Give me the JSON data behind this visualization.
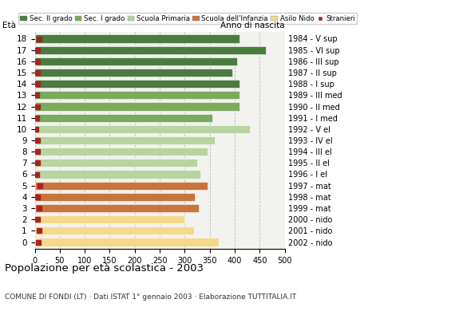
{
  "ages": [
    18,
    17,
    16,
    15,
    14,
    13,
    12,
    11,
    10,
    9,
    8,
    7,
    6,
    5,
    4,
    3,
    2,
    1,
    0
  ],
  "values": [
    410,
    462,
    405,
    395,
    410,
    410,
    410,
    355,
    430,
    360,
    345,
    325,
    332,
    345,
    320,
    328,
    300,
    318,
    368
  ],
  "stranieri": [
    8,
    6,
    5,
    5,
    5,
    4,
    5,
    4,
    3,
    5,
    6,
    6,
    4,
    10,
    5,
    8,
    5,
    8,
    7
  ],
  "bar_colors": [
    "#4a7c3f",
    "#4a7c3f",
    "#4a7c3f",
    "#4a7c3f",
    "#4a7c3f",
    "#7aaa5c",
    "#7aaa5c",
    "#7aaa5c",
    "#b8d4a0",
    "#b8d4a0",
    "#b8d4a0",
    "#b8d4a0",
    "#b8d4a0",
    "#c8743b",
    "#c8743b",
    "#c8743b",
    "#f5d98b",
    "#f5d98b",
    "#f5d98b"
  ],
  "anno_nascita": [
    "1984 - V sup",
    "1985 - VI sup",
    "1986 - III sup",
    "1987 - II sup",
    "1988 - I sup",
    "1989 - III med",
    "1990 - II med",
    "1991 - I med",
    "1992 - V el",
    "1993 - IV el",
    "1994 - III el",
    "1995 - II el",
    "1996 - I el",
    "1997 - mat",
    "1998 - mat",
    "1999 - mat",
    "2000 - nido",
    "2001 - nido",
    "2002 - nido"
  ],
  "legend_labels": [
    "Sec. II grado",
    "Sec. I grado",
    "Scuola Primaria",
    "Scuola dell'Infanzia",
    "Asilo Nido",
    "Stranieri"
  ],
  "legend_colors": [
    "#4a7c3f",
    "#7aaa5c",
    "#b8d4a0",
    "#c8743b",
    "#f5d98b",
    "#aa2222"
  ],
  "title": "Popolazione per età scolastica - 2003",
  "subtitle": "COMUNE DI FONDI (LT) · Dati ISTAT 1° gennaio 2003 · Elaborazione TUTTITALIA.IT",
  "label_eta": "Età",
  "label_anno": "Anno di nascita",
  "xlim": [
    0,
    500
  ],
  "xticks": [
    0,
    50,
    100,
    150,
    200,
    250,
    300,
    350,
    400,
    450,
    500
  ],
  "stranieri_color": "#aa2222",
  "bg_color": "#f2f2ee",
  "bar_height": 0.72
}
